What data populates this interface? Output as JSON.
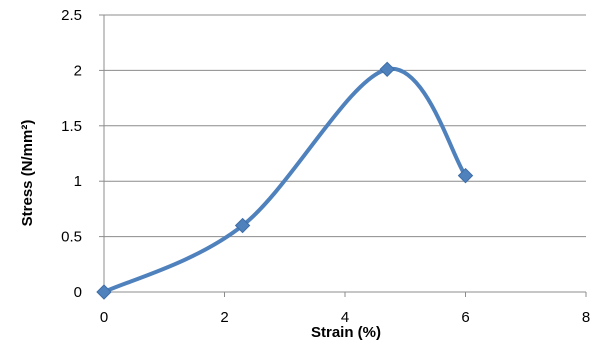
{
  "chart_data": {
    "type": "scatter",
    "mode": "smooth-lines-with-markers",
    "title": "",
    "xlabel": "Strain (%)",
    "ylabel": "Stress (N/mm²)",
    "xlim": [
      0,
      8
    ],
    "ylim": [
      0,
      2.5
    ],
    "x_ticks": [
      "0",
      "2",
      "4",
      "6",
      "8"
    ],
    "y_ticks": [
      "0",
      "0.5",
      "1",
      "1.5",
      "2",
      "2.5"
    ],
    "grid": "horizontal",
    "legend": "none",
    "series": [
      {
        "color": "#4F81BD",
        "marker": "diamond",
        "x": [
          0,
          2.3,
          4.7,
          6.0
        ],
        "y": [
          0,
          0.6,
          2.01,
          1.05
        ]
      }
    ]
  }
}
